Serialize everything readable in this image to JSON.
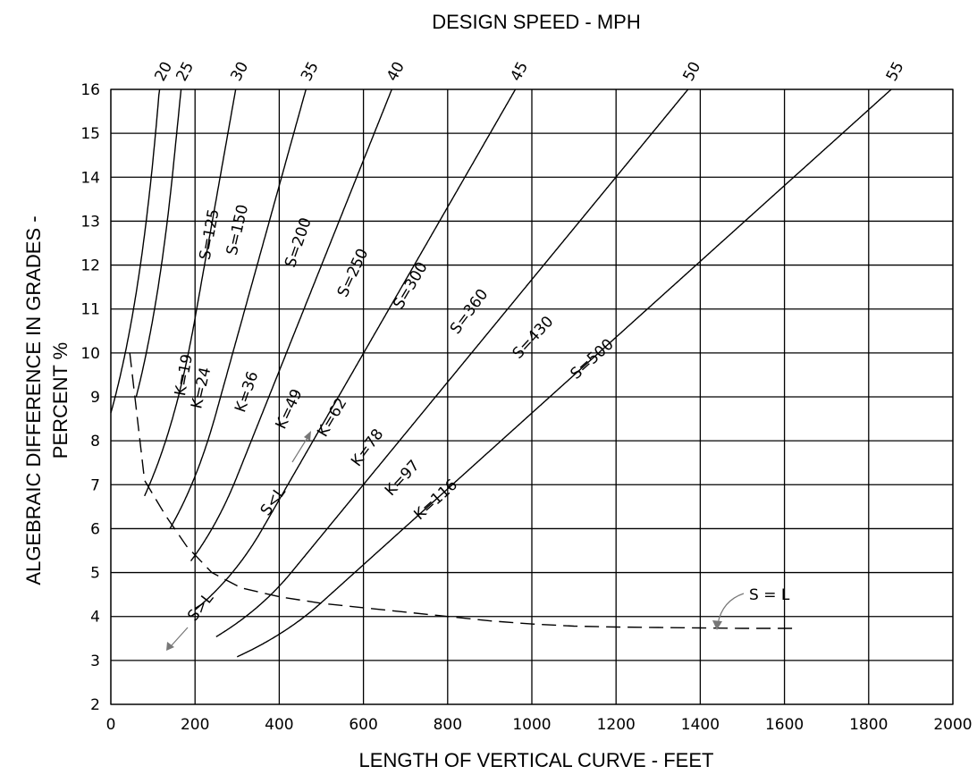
{
  "chart_data": {
    "type": "line",
    "title": "DESIGN SPEED - MPH",
    "xlabel": "LENGTH OF VERTICAL CURVE - FEET",
    "ylabel_line1": "ALGEBRAIC DIFFERENCE IN GRADES -",
    "ylabel_line2": "PERCENT %",
    "xlim": [
      0,
      2000
    ],
    "ylim": [
      2,
      16
    ],
    "x_ticks": [
      "0",
      "200",
      "400",
      "600",
      "800",
      "1000",
      "1200",
      "1400",
      "1600",
      "1800",
      "2000"
    ],
    "y_ticks": [
      "2",
      "3",
      "4",
      "5",
      "6",
      "7",
      "8",
      "9",
      "10",
      "11",
      "12",
      "13",
      "14",
      "15",
      "16"
    ],
    "grid": true,
    "series": [
      {
        "speed": "20",
        "k_label": "K=19",
        "s_label": "S=125",
        "K": 19,
        "S": 125,
        "min_length": 0
      },
      {
        "speed": "25",
        "k_label": "K=24",
        "s_label": "S=150",
        "K": 24,
        "S": 150,
        "min_length": 60
      },
      {
        "speed": "30",
        "k_label": "K=36",
        "s_label": "S=200",
        "K": 36,
        "S": 200,
        "min_length": 80
      },
      {
        "speed": "35",
        "k_label": "K=49",
        "s_label": "S=250",
        "K": 49,
        "S": 250,
        "min_length": 140
      },
      {
        "speed": "40",
        "k_label": "K=62",
        "s_label": "S=300",
        "K": 62,
        "S": 300,
        "min_length": 190
      },
      {
        "speed": "45",
        "k_label": "K=78",
        "s_label": "S=360",
        "K": 78,
        "S": 360,
        "min_length": 200
      },
      {
        "speed": "50",
        "k_label": "K=97",
        "s_label": "S=430",
        "K": 97,
        "S": 430,
        "min_length": 250
      },
      {
        "speed": "55",
        "k_label": "K=116",
        "s_label": "S=500",
        "K": 116,
        "S": 500,
        "min_length": 300
      }
    ],
    "boundary_curve": {
      "label": "S = L",
      "points": [
        [
          45,
          10
        ],
        [
          80,
          7.1
        ],
        [
          130,
          6.3
        ],
        [
          180,
          5.6
        ],
        [
          240,
          5.0
        ],
        [
          310,
          4.65
        ],
        [
          400,
          4.45
        ],
        [
          500,
          4.3
        ],
        [
          600,
          4.2
        ],
        [
          700,
          4.1
        ],
        [
          800,
          4.0
        ],
        [
          900,
          3.9
        ],
        [
          1000,
          3.83
        ],
        [
          1100,
          3.78
        ],
        [
          1200,
          3.76
        ],
        [
          1300,
          3.75
        ],
        [
          1400,
          3.74
        ],
        [
          1500,
          3.73
        ],
        [
          1620,
          3.73
        ]
      ]
    },
    "annotations": {
      "s_less_l": "S<L",
      "s_greater_l": "S>L"
    }
  }
}
